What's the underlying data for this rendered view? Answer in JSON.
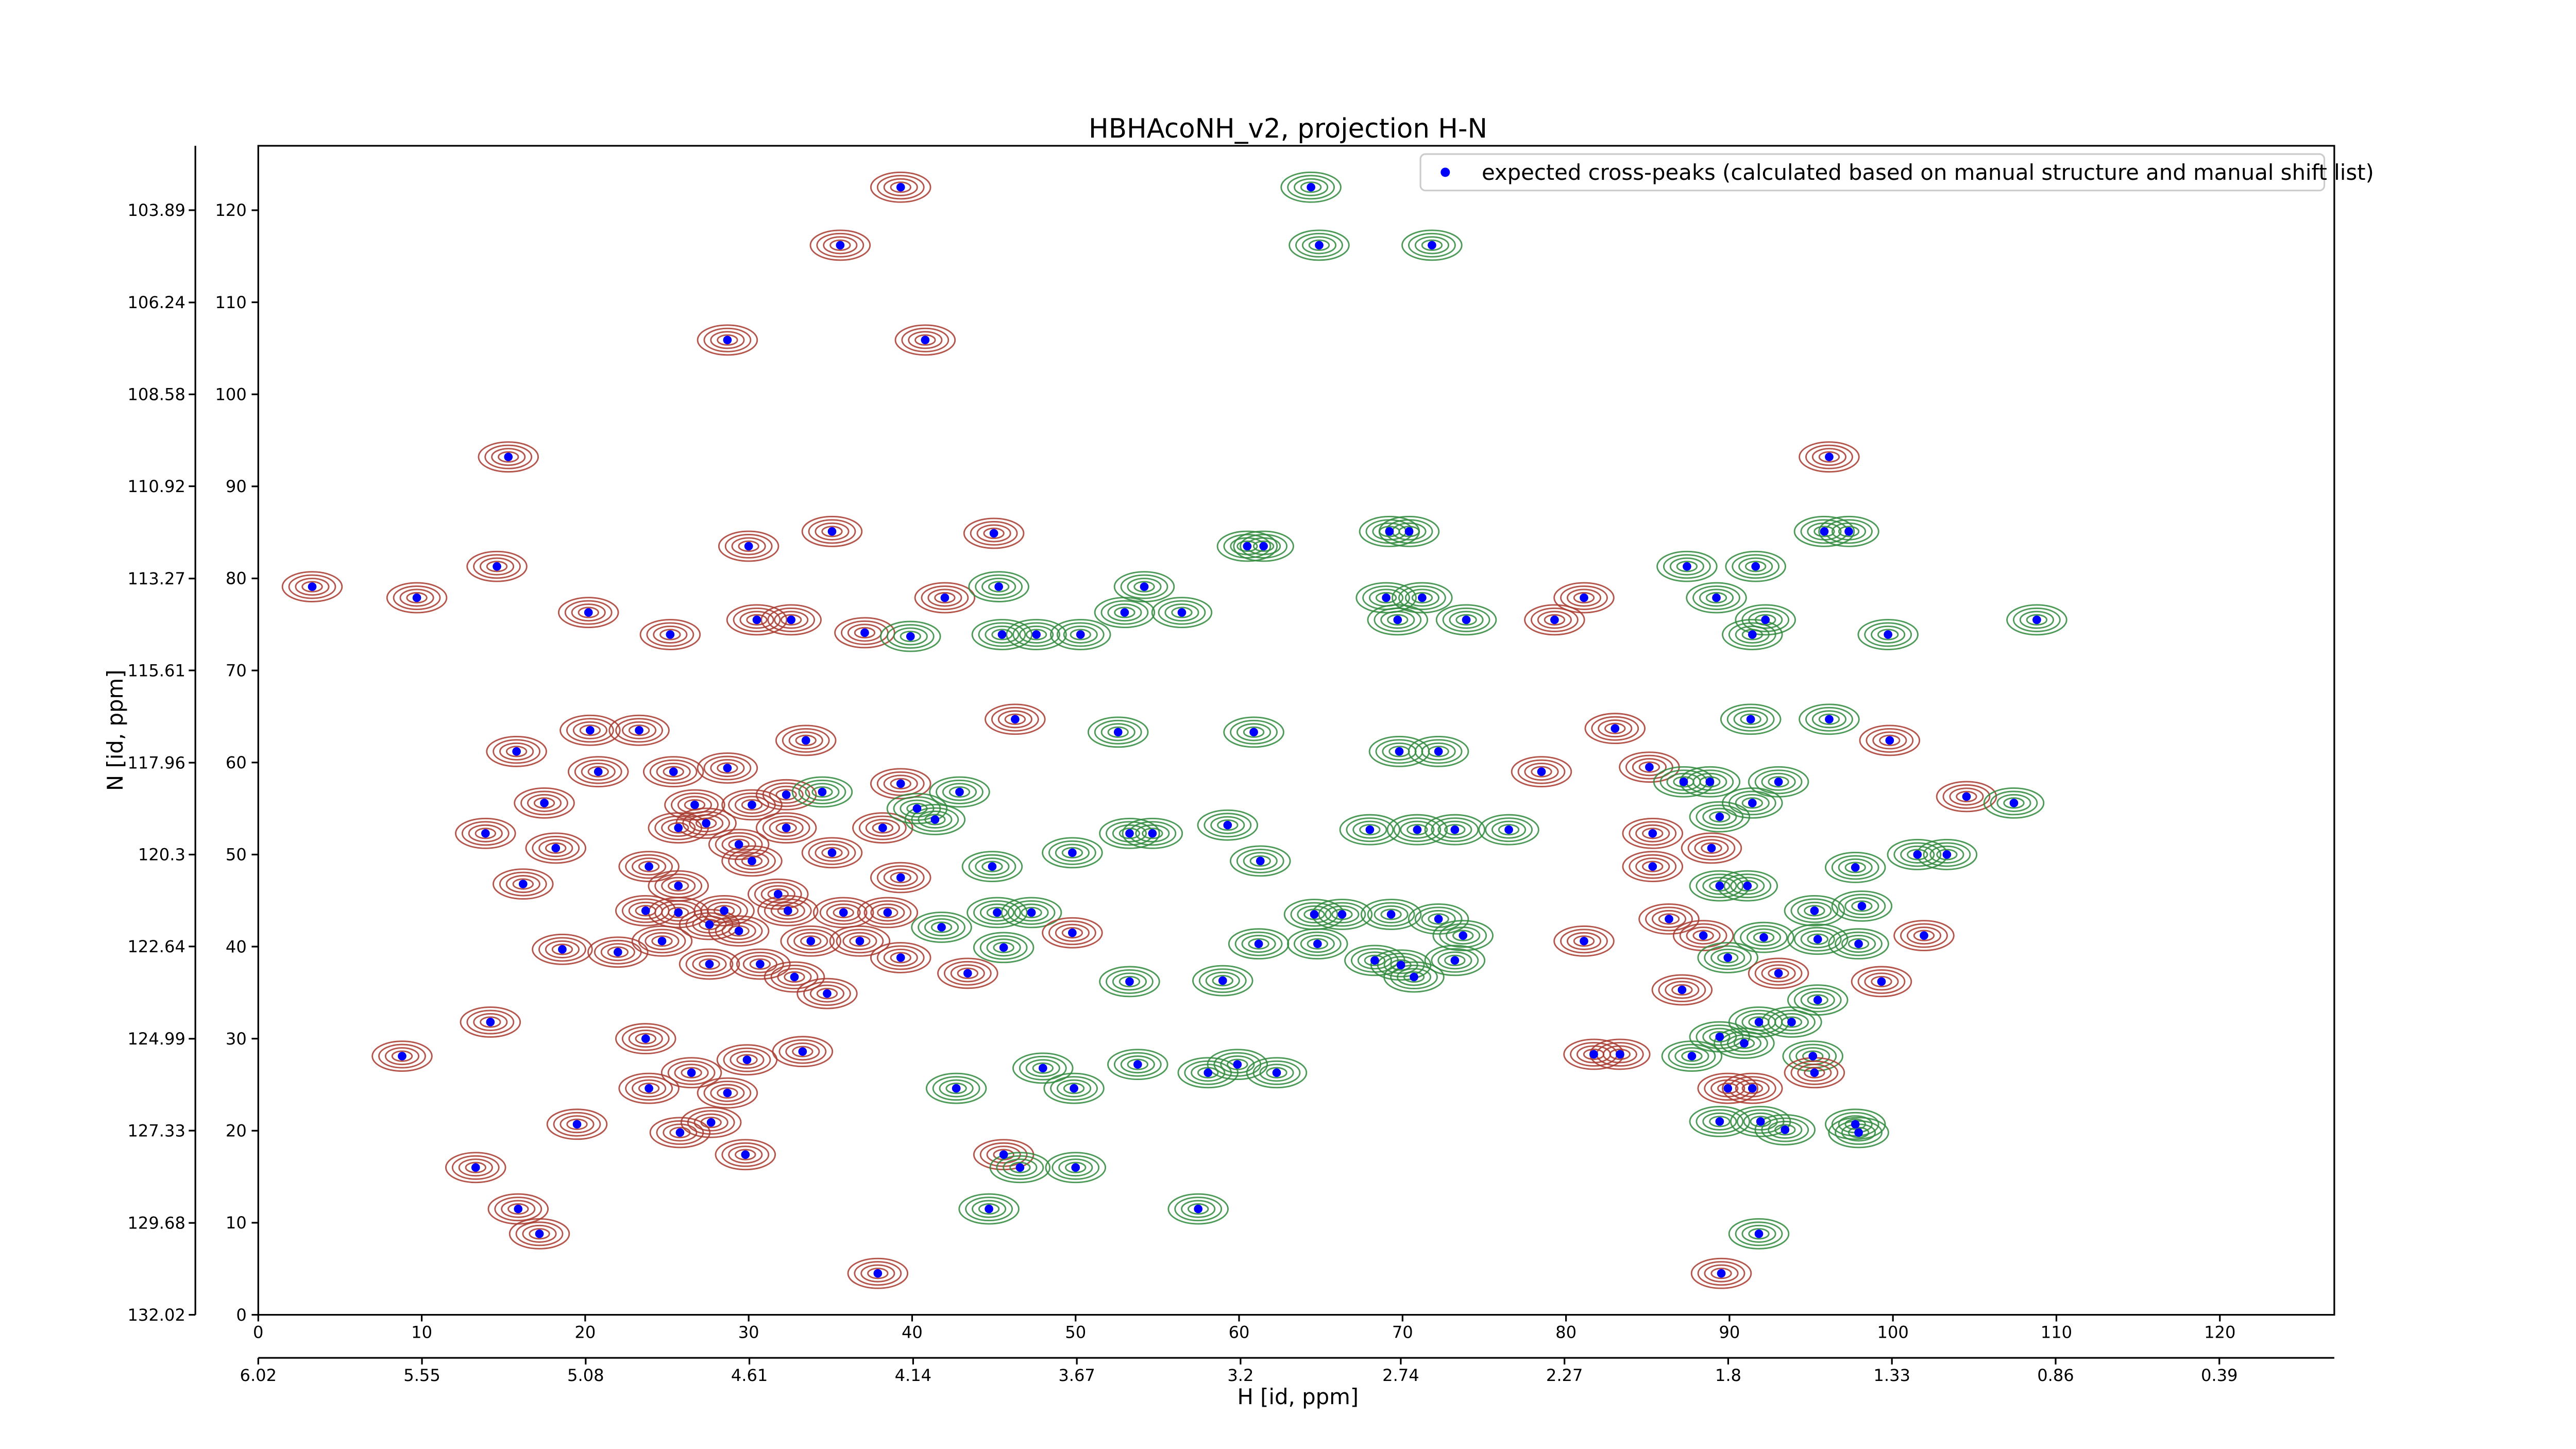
{
  "chart_data": {
    "type": "scatter",
    "title": "HBHAcoNH_v2, projection H-N",
    "xlabel": "H [id, ppm]",
    "ylabel": "N [id, ppm]",
    "xlim": [
      0,
      127
    ],
    "ylim": [
      0,
      127
    ],
    "xticks": [
      0,
      10,
      20,
      30,
      40,
      50,
      60,
      70,
      80,
      90,
      100,
      110,
      120
    ],
    "yticks": [
      0,
      10,
      20,
      30,
      40,
      50,
      60,
      70,
      80,
      90,
      100,
      110,
      120
    ],
    "x2lim": [
      6.02,
      0.06
    ],
    "x2ticks": [
      6.02,
      5.55,
      5.08,
      4.61,
      4.14,
      3.67,
      3.2,
      2.74,
      2.27,
      1.8,
      1.33,
      0.86,
      0.39
    ],
    "y2lim": [
      132.02,
      102.25
    ],
    "y2ticks": [
      132.02,
      129.68,
      127.33,
      124.99,
      122.64,
      120.3,
      117.96,
      115.61,
      113.27,
      110.92,
      108.58,
      106.24,
      103.89
    ],
    "legend": "upper right",
    "series": [
      {
        "name": "expected cross-peaks (calculated based on manual structure and manual shift list)",
        "color": "#0000ff",
        "x": [
          39.3,
          64.4,
          35.6,
          64.9,
          71.8,
          28.7,
          40.8,
          15.3,
          96.1,
          45.0,
          30.0,
          35.1,
          60.5,
          61.5,
          69.2,
          70.4,
          95.8,
          97.3,
          14.6,
          3.3,
          9.7,
          87.4,
          91.6,
          42.0,
          45.3,
          54.2,
          69.0,
          71.2,
          81.1,
          89.2,
          20.2,
          30.5,
          32.6,
          53.0,
          56.5,
          69.7,
          73.9,
          79.3,
          92.2,
          108.8,
          25.2,
          37.1,
          39.9,
          45.5,
          47.6,
          50.3,
          91.4,
          99.7,
          46.3,
          96.1,
          91.3,
          52.6,
          60.9,
          83.0,
          15.8,
          20.3,
          23.3,
          33.5,
          69.8,
          72.2,
          99.8,
          20.8,
          78.5,
          85.1,
          87.2,
          88.8,
          93.0,
          104.5,
          107.4,
          17.5,
          13.9,
          16.2,
          18.2,
          23.9,
          25.4,
          28.7,
          32.3,
          34.5,
          26.7,
          25.7,
          27.4,
          30.2,
          29.4,
          30.2,
          32.3,
          35.1,
          38.2,
          39.3,
          40.3,
          41.4,
          42.9,
          44.9,
          49.8,
          39.3,
          25.7,
          31.8,
          53.3,
          54.7,
          59.3,
          61.3,
          68.0,
          70.9,
          73.2,
          76.5,
          85.3,
          89.4,
          91.4,
          85.3,
          88.9,
          97.7,
          101.5,
          103.3,
          89.4,
          91.1,
          95.2,
          98.1,
          23.7,
          25.7,
          28.5,
          32.4,
          35.8,
          38.5,
          41.8,
          45.2,
          47.3,
          49.8,
          24.7,
          27.6,
          29.4,
          33.8,
          36.8,
          18.6,
          22.0,
          27.6,
          30.7,
          32.8,
          34.8,
          39.3,
          43.4,
          45.6,
          64.6,
          66.3,
          69.3,
          72.2,
          61.2,
          64.8,
          68.3,
          69.9,
          73.2,
          73.7,
          70.7,
          59.0,
          53.3,
          81.1,
          86.3,
          88.4,
          92.1,
          95.4,
          97.9,
          89.9,
          93.0,
          101.9,
          87.1,
          99.3,
          95.4,
          91.8,
          93.8,
          14.2,
          23.7,
          8.8,
          29.9,
          33.3,
          81.7,
          83.3,
          89.4,
          87.7,
          90.9,
          95.1,
          48.0,
          49.9,
          53.8,
          59.9,
          58.1,
          62.3,
          42.7,
          23.9,
          26.5,
          28.7,
          25.8,
          27.7,
          19.5,
          89.9,
          91.4,
          95.2,
          89.4,
          91.9,
          93.4,
          97.7,
          97.9,
          29.8,
          13.3,
          45.6,
          46.6,
          50.0,
          44.7,
          57.5,
          15.9,
          17.2,
          91.8,
          37.9,
          89.5
        ],
        "y": [
          122.5,
          122.5,
          116.2,
          116.2,
          116.2,
          105.9,
          105.9,
          93.2,
          93.2,
          84.9,
          83.5,
          85.1,
          83.5,
          83.5,
          85.1,
          85.1,
          85.1,
          85.1,
          81.3,
          79.1,
          77.9,
          81.3,
          81.3,
          77.9,
          79.1,
          79.1,
          77.9,
          77.9,
          77.9,
          77.9,
          76.3,
          75.5,
          75.5,
          76.3,
          76.3,
          75.5,
          75.5,
          75.5,
          75.5,
          75.5,
          73.9,
          74.1,
          73.7,
          73.9,
          73.9,
          73.9,
          73.9,
          73.9,
          64.7,
          64.7,
          64.7,
          63.3,
          63.3,
          63.7,
          61.2,
          63.5,
          63.5,
          62.4,
          61.2,
          61.2,
          62.4,
          59.0,
          59.0,
          59.5,
          57.9,
          57.9,
          57.9,
          56.3,
          55.6,
          55.6,
          52.3,
          46.8,
          50.7,
          48.7,
          59.0,
          59.4,
          56.5,
          56.8,
          55.4,
          52.9,
          53.4,
          55.4,
          51.1,
          49.3,
          52.9,
          50.2,
          52.9,
          57.7,
          55.0,
          53.8,
          56.8,
          48.7,
          50.2,
          47.5,
          46.6,
          45.7,
          52.3,
          52.3,
          53.2,
          49.3,
          52.7,
          52.7,
          52.7,
          52.7,
          52.3,
          54.1,
          55.6,
          48.7,
          50.7,
          48.6,
          50.0,
          50.0,
          46.6,
          46.6,
          43.9,
          44.4,
          43.9,
          43.7,
          43.9,
          43.9,
          43.7,
          43.7,
          42.1,
          43.7,
          43.7,
          41.5,
          40.6,
          42.4,
          41.7,
          40.6,
          40.6,
          39.7,
          39.4,
          38.1,
          38.1,
          36.7,
          34.9,
          38.8,
          37.1,
          39.9,
          43.5,
          43.5,
          43.5,
          43.0,
          40.3,
          40.3,
          38.5,
          38.0,
          38.5,
          41.2,
          36.7,
          36.3,
          36.2,
          40.6,
          43.0,
          41.2,
          41.0,
          40.8,
          40.3,
          38.8,
          37.1,
          41.2,
          35.3,
          36.2,
          34.2,
          31.8,
          31.8,
          31.8,
          30.0,
          28.1,
          27.7,
          28.6,
          28.3,
          28.3,
          30.2,
          28.1,
          29.5,
          28.1,
          26.8,
          24.6,
          27.2,
          27.2,
          26.3,
          26.3,
          24.6,
          24.6,
          26.3,
          24.1,
          19.8,
          20.9,
          20.7,
          24.6,
          24.6,
          26.3,
          21.0,
          21.0,
          20.1,
          20.7,
          19.8,
          17.4,
          16.0,
          17.4,
          16.0,
          16.0,
          11.5,
          11.5,
          11.5,
          8.8,
          8.8,
          4.5,
          4.5
        ],
        "contour_colors": [
          "#a8382e",
          "#2f8a3c",
          "#a8382e",
          "#2f8a3c",
          "#2f8a3c",
          "#a8382e",
          "#a8382e",
          "#a8382e",
          "#a8382e",
          "#a8382e",
          "#a8382e",
          "#a8382e",
          "#2f8a3c",
          "#2f8a3c",
          "#2f8a3c",
          "#2f8a3c",
          "#2f8a3c",
          "#2f8a3c",
          "#a8382e",
          "#a8382e",
          "#a8382e",
          "#2f8a3c",
          "#2f8a3c",
          "#a8382e",
          "#2f8a3c",
          "#2f8a3c",
          "#2f8a3c",
          "#2f8a3c",
          "#a8382e",
          "#2f8a3c",
          "#a8382e",
          "#a8382e",
          "#a8382e",
          "#2f8a3c",
          "#2f8a3c",
          "#2f8a3c",
          "#2f8a3c",
          "#a8382e",
          "#2f8a3c",
          "#2f8a3c",
          "#a8382e",
          "#a8382e",
          "#2f8a3c",
          "#2f8a3c",
          "#2f8a3c",
          "#2f8a3c",
          "#2f8a3c",
          "#2f8a3c",
          "#a8382e",
          "#2f8a3c",
          "#2f8a3c",
          "#2f8a3c",
          "#2f8a3c",
          "#a8382e",
          "#a8382e",
          "#a8382e",
          "#a8382e",
          "#a8382e",
          "#2f8a3c",
          "#2f8a3c",
          "#a8382e",
          "#a8382e",
          "#a8382e",
          "#a8382e",
          "#2f8a3c",
          "#2f8a3c",
          "#2f8a3c",
          "#a8382e",
          "#2f8a3c",
          "#a8382e",
          "#a8382e",
          "#a8382e",
          "#a8382e",
          "#a8382e",
          "#a8382e",
          "#a8382e",
          "#a8382e",
          "#2f8a3c",
          "#a8382e",
          "#a8382e",
          "#a8382e",
          "#a8382e",
          "#a8382e",
          "#a8382e",
          "#a8382e",
          "#a8382e",
          "#a8382e",
          "#a8382e",
          "#2f8a3c",
          "#2f8a3c",
          "#2f8a3c",
          "#2f8a3c",
          "#2f8a3c",
          "#a8382e",
          "#a8382e",
          "#a8382e",
          "#2f8a3c",
          "#2f8a3c",
          "#2f8a3c",
          "#2f8a3c",
          "#2f8a3c",
          "#2f8a3c",
          "#2f8a3c",
          "#2f8a3c",
          "#a8382e",
          "#2f8a3c",
          "#2f8a3c",
          "#a8382e",
          "#a8382e",
          "#2f8a3c",
          "#2f8a3c",
          "#2f8a3c",
          "#2f8a3c",
          "#2f8a3c",
          "#2f8a3c",
          "#2f8a3c",
          "#a8382e",
          "#a8382e",
          "#a8382e",
          "#a8382e",
          "#a8382e",
          "#a8382e",
          "#2f8a3c",
          "#2f8a3c",
          "#2f8a3c",
          "#a8382e",
          "#a8382e",
          "#a8382e",
          "#a8382e",
          "#a8382e",
          "#a8382e",
          "#a8382e",
          "#a8382e",
          "#a8382e",
          "#a8382e",
          "#a8382e",
          "#a8382e",
          "#a8382e",
          "#a8382e",
          "#2f8a3c",
          "#2f8a3c",
          "#2f8a3c",
          "#2f8a3c",
          "#2f8a3c",
          "#2f8a3c",
          "#2f8a3c",
          "#2f8a3c",
          "#2f8a3c",
          "#2f8a3c",
          "#2f8a3c",
          "#2f8a3c",
          "#2f8a3c",
          "#2f8a3c",
          "#a8382e",
          "#a8382e",
          "#a8382e",
          "#2f8a3c",
          "#2f8a3c",
          "#2f8a3c",
          "#2f8a3c",
          "#a8382e",
          "#a8382e",
          "#a8382e",
          "#a8382e",
          "#2f8a3c",
          "#2f8a3c",
          "#2f8a3c",
          "#a8382e",
          "#a8382e",
          "#a8382e",
          "#a8382e",
          "#a8382e",
          "#a8382e",
          "#a8382e",
          "#2f8a3c",
          "#2f8a3c",
          "#2f8a3c",
          "#2f8a3c",
          "#2f8a3c",
          "#2f8a3c",
          "#2f8a3c",
          "#2f8a3c",
          "#2f8a3c",
          "#2f8a3c",
          "#2f8a3c",
          "#a8382e",
          "#a8382e",
          "#a8382e",
          "#a8382e",
          "#a8382e",
          "#a8382e",
          "#a8382e",
          "#a8382e",
          "#a8382e",
          "#2f8a3c",
          "#2f8a3c",
          "#2f8a3c",
          "#2f8a3c",
          "#2f8a3c",
          "#a8382e",
          "#a8382e",
          "#a8382e",
          "#2f8a3c",
          "#2f8a3c",
          "#2f8a3c",
          "#2f8a3c",
          "#a8382e",
          "#a8382e",
          "#2f8a3c",
          "#a8382e",
          "#a8382e"
        ]
      }
    ]
  }
}
